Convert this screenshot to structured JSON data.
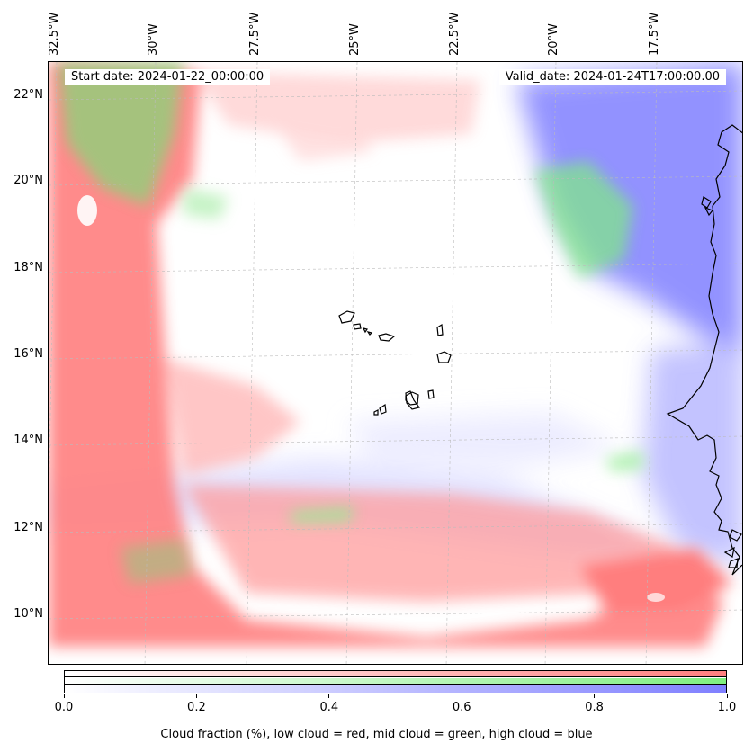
{
  "map": {
    "start_date": "Start date: 2024-01-22_00:00:00",
    "valid_date": "Valid_date: 2024-01-24T17:00:00.00",
    "longitude_labels": [
      "32.5°W",
      "30°W",
      "27.5°W",
      "25°W",
      "22.5°W",
      "20°W",
      "17.5°W"
    ],
    "latitude_labels": [
      "22°N",
      "20°N",
      "18°N",
      "16°N",
      "14°N",
      "12°N",
      "10°N"
    ],
    "layers": [
      {
        "name": "low cloud",
        "color": "#ff7f7f"
      },
      {
        "name": "mid cloud",
        "color": "#7fef7f"
      },
      {
        "name": "high cloud",
        "color": "#7f7fff"
      }
    ],
    "coastline_color": "#000000"
  },
  "colorbar": {
    "range": [
      0.0,
      1.0
    ],
    "tick_labels": [
      "0.0",
      "0.2",
      "0.4",
      "0.6",
      "0.8",
      "1.0"
    ],
    "caption": "Cloud fraction (%), low cloud = red, mid cloud = green, high cloud = blue"
  }
}
